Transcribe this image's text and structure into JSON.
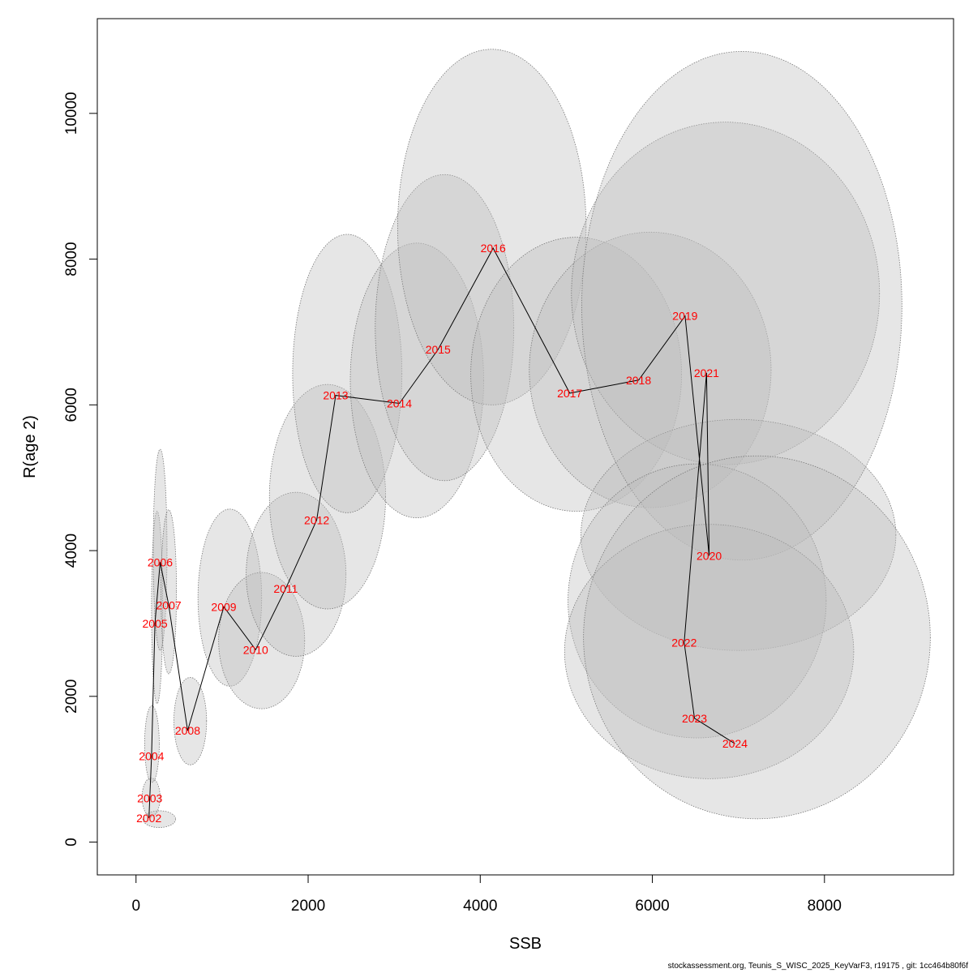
{
  "chart_data": {
    "type": "scatter",
    "title": "",
    "xlabel": "SSB",
    "ylabel": "R(age 2)",
    "xlim": [
      -450,
      9500
    ],
    "ylim": [
      -450,
      11300
    ],
    "x_ticks": [
      0,
      2000,
      4000,
      6000,
      8000
    ],
    "y_ticks": [
      0,
      2000,
      4000,
      6000,
      8000,
      10000
    ],
    "x_tick_labels": [
      "0",
      "2000",
      "4000",
      "6000",
      "8000"
    ],
    "y_tick_labels": [
      "0",
      "2000",
      "4000",
      "6000",
      "8000",
      "10000"
    ],
    "grid": false,
    "legend": "none",
    "colors": {
      "label": "#ff0000",
      "line": "#000000",
      "ellipse_fill": "#bebebe",
      "ellipse_stroke": "#777777"
    },
    "points": [
      {
        "year": "2002",
        "ssb": 150,
        "r": 330
      },
      {
        "year": "2003",
        "ssb": 160,
        "r": 600
      },
      {
        "year": "2004",
        "ssb": 180,
        "r": 1180
      },
      {
        "year": "2005",
        "ssb": 220,
        "r": 3000
      },
      {
        "year": "2006",
        "ssb": 280,
        "r": 3840
      },
      {
        "year": "2007",
        "ssb": 380,
        "r": 3250
      },
      {
        "year": "2008",
        "ssb": 600,
        "r": 1530
      },
      {
        "year": "2009",
        "ssb": 1020,
        "r": 3230
      },
      {
        "year": "2010",
        "ssb": 1390,
        "r": 2640
      },
      {
        "year": "2011",
        "ssb": 1740,
        "r": 3480
      },
      {
        "year": "2012",
        "ssb": 2100,
        "r": 4420
      },
      {
        "year": "2013",
        "ssb": 2320,
        "r": 6130
      },
      {
        "year": "2014",
        "ssb": 3060,
        "r": 6020
      },
      {
        "year": "2015",
        "ssb": 3510,
        "r": 6760
      },
      {
        "year": "2016",
        "ssb": 4150,
        "r": 8150
      },
      {
        "year": "2017",
        "ssb": 5040,
        "r": 6160
      },
      {
        "year": "2018",
        "ssb": 5840,
        "r": 6340
      },
      {
        "year": "2019",
        "ssb": 6380,
        "r": 7220
      },
      {
        "year": "2020",
        "ssb": 6660,
        "r": 3930
      },
      {
        "year": "2021",
        "ssb": 6630,
        "r": 6440
      },
      {
        "year": "2022",
        "ssb": 6370,
        "r": 2740
      },
      {
        "year": "2023",
        "ssb": 6490,
        "r": 1700
      },
      {
        "year": "2024",
        "ssb": 6960,
        "r": 1350
      }
    ],
    "uncertainty_regions": [
      {
        "year": "2002",
        "ssb_range": [
          80,
          460
        ],
        "r_range": [
          200,
          430
        ]
      },
      {
        "year": "2003",
        "ssb_range": [
          70,
          280
        ],
        "r_range": [
          350,
          880
        ]
      },
      {
        "year": "2004",
        "ssb_range": [
          100,
          270
        ],
        "r_range": [
          820,
          1870
        ]
      },
      {
        "year": "2005",
        "ssb_range": [
          180,
          310
        ],
        "r_range": [
          1900,
          4540
        ]
      },
      {
        "year": "2006",
        "ssb_range": [
          200,
          360
        ],
        "r_range": [
          2630,
          5390
        ]
      },
      {
        "year": "2007",
        "ssb_range": [
          290,
          470
        ],
        "r_range": [
          2310,
          4560
        ]
      },
      {
        "year": "2008",
        "ssb_range": [
          440,
          820
        ],
        "r_range": [
          1060,
          2260
        ]
      },
      {
        "year": "2009",
        "ssb_range": [
          720,
          1460
        ],
        "r_range": [
          2140,
          4570
        ]
      },
      {
        "year": "2010",
        "ssb_range": [
          960,
          1960
        ],
        "r_range": [
          1830,
          3700
        ]
      },
      {
        "year": "2011",
        "ssb_range": [
          1280,
          2440
        ],
        "r_range": [
          2550,
          4800
        ]
      },
      {
        "year": "2012",
        "ssb_range": [
          1550,
          2900
        ],
        "r_range": [
          3200,
          6280
        ]
      },
      {
        "year": "2013",
        "ssb_range": [
          1820,
          3090
        ],
        "r_range": [
          4520,
          8340
        ]
      },
      {
        "year": "2014",
        "ssb_range": [
          2490,
          4040
        ],
        "r_range": [
          4450,
          8220
        ]
      },
      {
        "year": "2015",
        "ssb_range": [
          2780,
          4390
        ],
        "r_range": [
          4960,
          9160
        ]
      },
      {
        "year": "2016",
        "ssb_range": [
          3040,
          5230
        ],
        "r_range": [
          6000,
          10880
        ]
      },
      {
        "year": "2017",
        "ssb_range": [
          3890,
          6340
        ],
        "r_range": [
          4540,
          8300
        ]
      },
      {
        "year": "2018",
        "ssb_range": [
          4570,
          7380
        ],
        "r_range": [
          4590,
          8370
        ]
      },
      {
        "year": "2019",
        "ssb_range": [
          5060,
          8640
        ],
        "r_range": [
          5180,
          9880
        ]
      },
      {
        "year": "2020",
        "ssb_range": [
          5170,
          8830
        ],
        "r_range": [
          2630,
          5800
        ]
      },
      {
        "year": "2021",
        "ssb_range": [
          5180,
          8900
        ],
        "r_range": [
          3870,
          10850
        ]
      },
      {
        "year": "2022",
        "ssb_range": [
          5020,
          8020
        ],
        "r_range": [
          1430,
          5190
        ]
      },
      {
        "year": "2023",
        "ssb_range": [
          4980,
          8340
        ],
        "r_range": [
          870,
          4360
        ]
      },
      {
        "year": "2024",
        "ssb_range": [
          5200,
          9230
        ],
        "r_range": [
          320,
          5300
        ]
      }
    ]
  },
  "footer": {
    "text": "stockassessment.org, Teunis_S_WISC_2025_KeyVarF3, r19175 , git: 1cc464b80f6f"
  }
}
